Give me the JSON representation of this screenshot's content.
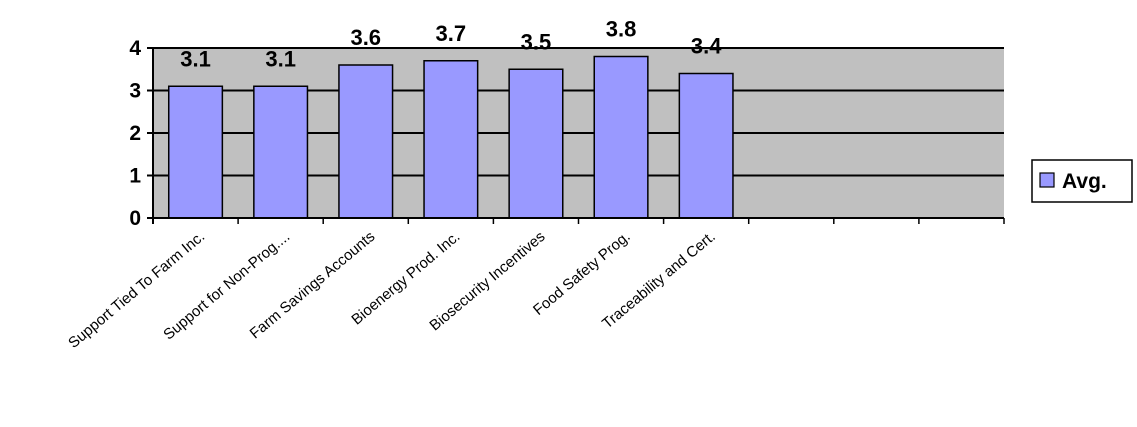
{
  "chart_data": {
    "type": "bar",
    "categories": [
      "Support Tied To Farm Inc.",
      "Support for Non-Prog....",
      "Farm Savings Accounts",
      "Bioenergy Prod. Inc.",
      "Biosecurity Incentives",
      "Food Safety Prog.",
      "Traceability and Cert.",
      "",
      "",
      ""
    ],
    "series": [
      {
        "name": "Avg.",
        "values": [
          3.1,
          3.1,
          3.6,
          3.7,
          3.5,
          3.8,
          3.4,
          null,
          null,
          null
        ]
      }
    ],
    "data_labels": [
      "3.1",
      "3.1",
      "3.6",
      "3.7",
      "3.5",
      "3.8",
      "3.4"
    ],
    "yticks": [
      "0",
      "1",
      "2",
      "3",
      "4"
    ],
    "ylim": [
      0,
      4
    ],
    "grid": true,
    "legend": "right",
    "colors": {
      "bar": "#9999ff",
      "plot_background": "#c0c0c0",
      "gridline": "#000000"
    }
  }
}
